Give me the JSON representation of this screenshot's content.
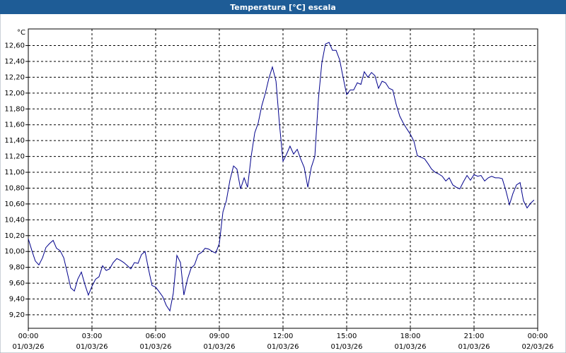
{
  "chart_data": {
    "type": "line",
    "title": "Temperatura [°C] escala",
    "y_unit": "°C",
    "x": [
      0,
      0.17,
      0.33,
      0.5,
      0.67,
      0.83,
      1,
      1.17,
      1.33,
      1.5,
      1.67,
      1.83,
      2,
      2.17,
      2.33,
      2.5,
      2.67,
      2.83,
      3,
      3.17,
      3.33,
      3.5,
      3.67,
      3.83,
      4,
      4.17,
      4.33,
      4.5,
      4.67,
      4.83,
      5,
      5.17,
      5.33,
      5.5,
      5.67,
      5.83,
      6,
      6.17,
      6.33,
      6.5,
      6.67,
      6.83,
      7,
      7.17,
      7.33,
      7.5,
      7.67,
      7.83,
      8,
      8.17,
      8.33,
      8.5,
      8.67,
      8.83,
      9,
      9.17,
      9.33,
      9.5,
      9.67,
      9.83,
      10,
      10.17,
      10.33,
      10.5,
      10.67,
      10.83,
      11,
      11.17,
      11.33,
      11.5,
      11.67,
      11.83,
      12,
      12.17,
      12.33,
      12.5,
      12.67,
      12.83,
      13,
      13.17,
      13.33,
      13.5,
      13.67,
      13.83,
      14,
      14.17,
      14.33,
      14.5,
      14.67,
      14.83,
      15,
      15.17,
      15.33,
      15.5,
      15.67,
      15.83,
      16,
      16.17,
      16.33,
      16.5,
      16.67,
      16.83,
      17,
      17.17,
      17.33,
      17.5,
      17.67,
      17.83,
      18,
      18.17,
      18.33,
      18.5,
      18.67,
      18.83,
      19,
      19.17,
      19.33,
      19.5,
      19.67,
      19.83,
      20,
      20.17,
      20.33,
      20.5,
      20.67,
      20.83,
      21,
      21.17,
      21.33,
      21.5,
      21.67,
      21.83,
      22,
      22.17,
      22.33,
      22.5,
      22.67,
      22.83,
      23,
      23.17,
      23.33,
      23.5,
      23.67,
      23.83
    ],
    "series": [
      {
        "color": "#00008b",
        "values": [
          10.16,
          10.01,
          9.88,
          9.83,
          9.92,
          10.05,
          10.1,
          10.14,
          10.04,
          10.01,
          9.92,
          9.74,
          9.54,
          9.5,
          9.65,
          9.74,
          9.58,
          9.45,
          9.56,
          9.65,
          9.68,
          9.82,
          9.76,
          9.78,
          9.86,
          9.91,
          9.89,
          9.86,
          9.82,
          9.78,
          9.86,
          9.85,
          9.96,
          10.0,
          9.77,
          9.57,
          9.55,
          9.49,
          9.43,
          9.32,
          9.25,
          9.47,
          9.95,
          9.86,
          9.45,
          9.65,
          9.79,
          9.83,
          9.96,
          9.99,
          10.04,
          10.03,
          10.0,
          9.98,
          10.1,
          10.5,
          10.64,
          10.9,
          11.08,
          11.04,
          10.79,
          10.93,
          10.81,
          11.2,
          11.5,
          11.62,
          11.84,
          12.0,
          12.18,
          12.33,
          12.15,
          11.62,
          11.14,
          11.23,
          11.33,
          11.23,
          11.29,
          11.17,
          11.06,
          10.81,
          11.06,
          11.2,
          11.93,
          12.38,
          12.62,
          12.64,
          12.54,
          12.54,
          12.42,
          12.2,
          11.98,
          12.04,
          12.04,
          12.13,
          12.11,
          12.27,
          12.2,
          12.26,
          12.22,
          12.06,
          12.15,
          12.13,
          12.06,
          12.04,
          11.86,
          11.71,
          11.62,
          11.55,
          11.48,
          11.39,
          11.21,
          11.19,
          11.17,
          11.11,
          11.04,
          11.0,
          10.98,
          10.95,
          10.89,
          10.93,
          10.84,
          10.81,
          10.79,
          10.88,
          10.96,
          10.9,
          10.97,
          10.95,
          10.96,
          10.89,
          10.93,
          10.95,
          10.93,
          10.93,
          10.92,
          10.77,
          10.59,
          10.73,
          10.84,
          10.87,
          10.64,
          10.55,
          10.61,
          10.65
        ]
      }
    ],
    "xlim": [
      0,
      24
    ],
    "xticks": [
      {
        "value": 0,
        "label": "00:00\n01/03/26"
      },
      {
        "value": 3,
        "label": "03:00\n01/03/26"
      },
      {
        "value": 6,
        "label": "06:00\n01/03/26"
      },
      {
        "value": 9,
        "label": "09:00\n01/03/26"
      },
      {
        "value": 12,
        "label": "12:00\n01/03/26"
      },
      {
        "value": 15,
        "label": "15:00\n01/03/26"
      },
      {
        "value": 18,
        "label": "18:00\n01/03/26"
      },
      {
        "value": 21,
        "label": "21:00\n01/03/26"
      },
      {
        "value": 24,
        "label": "00:00\n02/03/26"
      }
    ],
    "ylim": [
      9.03,
      12.81
    ],
    "yticks": [
      {
        "value": 9.2,
        "label": "9,20"
      },
      {
        "value": 9.4,
        "label": "9,40"
      },
      {
        "value": 9.6,
        "label": "9,60"
      },
      {
        "value": 9.8,
        "label": "9,80"
      },
      {
        "value": 10,
        "label": "10,00"
      },
      {
        "value": 10.2,
        "label": "10,20"
      },
      {
        "value": 10.4,
        "label": "10,40"
      },
      {
        "value": 10.6,
        "label": "10,60"
      },
      {
        "value": 10.8,
        "label": "10,80"
      },
      {
        "value": 11,
        "label": "11,00"
      },
      {
        "value": 11.2,
        "label": "11,20"
      },
      {
        "value": 11.4,
        "label": "11,40"
      },
      {
        "value": 11.6,
        "label": "11,60"
      },
      {
        "value": 11.8,
        "label": "11,80"
      },
      {
        "value": 12,
        "label": "12,00"
      },
      {
        "value": 12.2,
        "label": "12,20"
      },
      {
        "value": 12.4,
        "label": "12,40"
      },
      {
        "value": 12.6,
        "label": "12,60"
      }
    ],
    "grid": true
  }
}
